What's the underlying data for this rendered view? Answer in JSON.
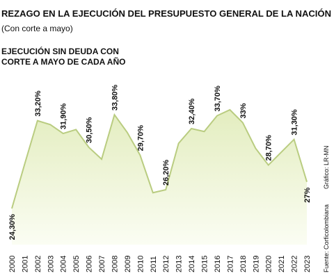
{
  "chart_data": {
    "type": "area",
    "title": "REZAGO EN LA EJECUCIÓN DEL PRESUPUESTO GENERAL DE LA NACIÓN",
    "subtitle": "(Con corte a mayo)",
    "chart_label": [
      "EJECUCIÓN SIN DEUDA CON",
      "CORTE A MAYO DE CADA AÑO"
    ],
    "credit": "Gráfico: LR-MN",
    "source": "Fuente: Corficolombiana",
    "color": "#b9cc80",
    "categories": [
      "2000",
      "2001",
      "2002",
      "2003",
      "2004",
      "2005",
      "2006",
      "2007",
      "2008",
      "2009",
      "2010",
      "2011",
      "2012",
      "2013",
      "2014",
      "2015",
      "2016",
      "2017",
      "2018",
      "2019",
      "2020",
      "2021",
      "2022",
      "2023"
    ],
    "values": [
      24.3,
      28.8,
      33.2,
      32.8,
      31.9,
      32.3,
      30.5,
      29.3,
      33.8,
      32.0,
      29.7,
      25.9,
      26.2,
      30.9,
      32.4,
      32.1,
      33.7,
      34.3,
      33.0,
      30.4,
      28.7,
      30.0,
      31.3,
      27.0
    ],
    "value_labels": [
      "24,30%",
      null,
      "33,20%",
      null,
      "31,90%",
      null,
      "30,50%",
      null,
      "33,80%",
      null,
      "29,70%",
      null,
      "26,20%",
      null,
      "32,40%",
      null,
      "33,70%",
      null,
      "33%",
      null,
      "28,70%",
      null,
      "31,30%",
      "27%"
    ]
  }
}
